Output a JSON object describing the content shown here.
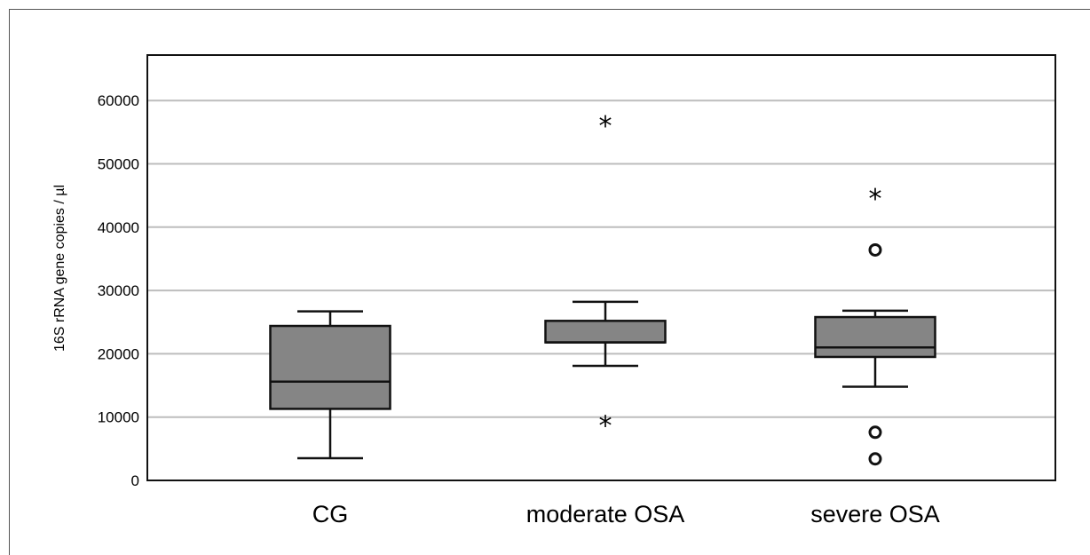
{
  "chart_data": {
    "type": "box",
    "title": "",
    "xlabel": "",
    "ylabel": "16S rRNA gene copies / µl",
    "ylim": [
      0,
      67000
    ],
    "yticks": [
      0,
      10000,
      20000,
      30000,
      40000,
      50000,
      60000
    ],
    "grid": true,
    "categories": [
      "CG",
      "moderate OSA",
      "severe OSA"
    ],
    "boxes": [
      {
        "name": "CG",
        "whisker_low": 3500,
        "q1": 11300,
        "median": 15600,
        "q3": 24400,
        "whisker_high": 26700,
        "outliers": [],
        "extremes": []
      },
      {
        "name": "moderate OSA",
        "whisker_low": 18100,
        "q1": 21800,
        "median": 21800,
        "q3": 25200,
        "whisker_high": 28200,
        "outliers": [],
        "extremes": [
          9200,
          56500
        ]
      },
      {
        "name": "severe OSA",
        "whisker_low": 14800,
        "q1": 19500,
        "median": 21000,
        "q3": 25800,
        "whisker_high": 26800,
        "outliers": [
          36400,
          7600,
          3400
        ],
        "extremes": [
          45000
        ]
      }
    ],
    "colors": {
      "box_fill": "#858585",
      "stroke": "#111111",
      "grid": "#bdbdbd"
    }
  }
}
